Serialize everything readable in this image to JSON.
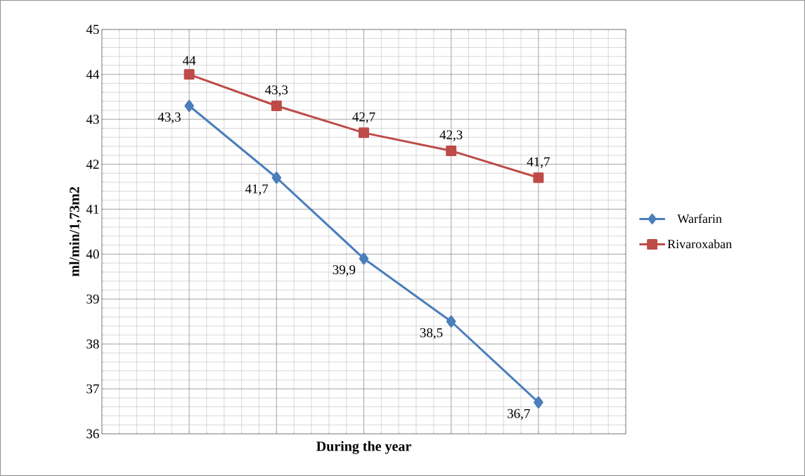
{
  "chart_data": {
    "type": "line",
    "xlabel": "During the year",
    "ylabel": "ml/min/1,73m2",
    "categories": [
      null,
      null,
      null,
      null,
      null
    ],
    "series": [
      {
        "name": "Warfarin",
        "color": "#4a7ebb",
        "marker": "diamond",
        "values": [
          43.3,
          41.7,
          39.9,
          38.5,
          36.7
        ],
        "value_labels": [
          "43,3",
          "41,7",
          "39,9",
          "38,5",
          "36,7"
        ]
      },
      {
        "name": "Rivaroxaban",
        "color": "#be4b48",
        "marker": "square",
        "values": [
          44,
          43.3,
          42.7,
          42.3,
          41.7
        ],
        "value_labels": [
          "44",
          "43,3",
          "42,7",
          "42,3",
          "41,7"
        ]
      }
    ],
    "ylim": [
      36,
      45
    ],
    "yticks": [
      36,
      37,
      38,
      39,
      40,
      41,
      42,
      43,
      44,
      45
    ],
    "grid": true,
    "legend": "right",
    "tick_labels": "y",
    "line_style": "solid"
  }
}
